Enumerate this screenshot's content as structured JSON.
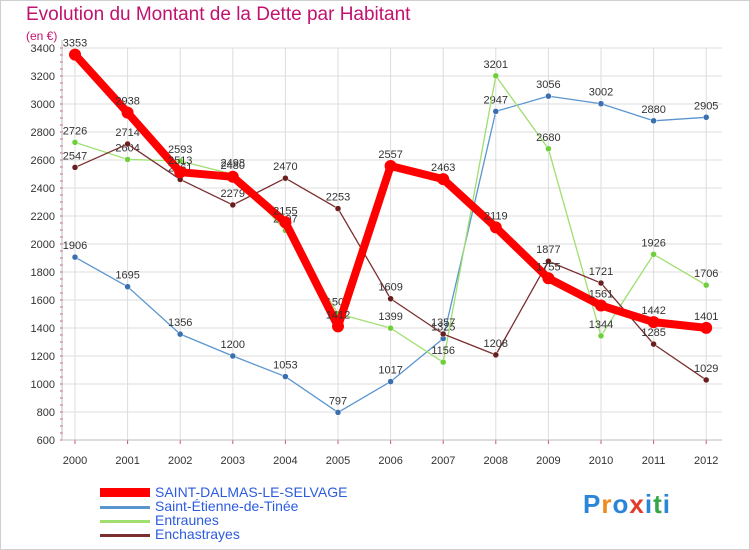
{
  "header": {
    "title": "Evolution du Montant de la Dette par Habitant",
    "unit": "(en €)"
  },
  "logo": {
    "letters": [
      "P",
      "r",
      "o",
      "x",
      "i",
      "t",
      "i"
    ],
    "colors": [
      "#2b86d9",
      "#ef8a1d",
      "#2b86d9",
      "#e23b2b",
      "#2b86d9",
      "#36a64a",
      "#2b86d9"
    ]
  },
  "chart_data": {
    "type": "line",
    "x": [
      "2000",
      "2001",
      "2002",
      "2003",
      "2004",
      "2005",
      "2006",
      "2007",
      "2008",
      "2009",
      "2010",
      "2011",
      "2012"
    ],
    "ylim": [
      600,
      3400
    ],
    "yticks": [
      600,
      800,
      1000,
      1200,
      1400,
      1600,
      1800,
      2000,
      2200,
      2400,
      2600,
      2800,
      3000,
      3200,
      3400
    ],
    "grid": true,
    "legend_position": "bottom-left",
    "series": [
      {
        "name": "Saint-Étienne-de-Tinée",
        "color": "#5b95d0",
        "dot": "#3a6fb0",
        "values": [
          1906,
          1695,
          1356,
          1200,
          1053,
          797,
          1017,
          1325,
          2947,
          3056,
          3002,
          2880,
          2905
        ]
      },
      {
        "name": "Entraunes",
        "color": "#9fde6f",
        "dot": "#6fcf3a",
        "values": [
          2726,
          2604,
          2593,
          2498,
          2097,
          1503,
          1399,
          1156,
          3201,
          2680,
          1344,
          1926,
          1706
        ]
      },
      {
        "name": "Enchastrayes",
        "color": "#7a2e2e",
        "dot": "#6b1e1e",
        "values": [
          2547,
          2714,
          2461,
          2279,
          2470,
          2253,
          1609,
          1357,
          1208,
          1877,
          1721,
          1285,
          1029
        ]
      },
      {
        "name": "SAINT-DALMAS-LE-SELVAGE",
        "color": "#ff0000",
        "dot": "#ff0000",
        "highlight": true,
        "values": [
          3353,
          2938,
          2513,
          2480,
          2155,
          1412,
          2557,
          2463,
          2119,
          1755,
          1561,
          1442,
          1401
        ]
      }
    ],
    "legend_order": [
      "SAINT-DALMAS-LE-SELVAGE",
      "Saint-Étienne-de-Tinée",
      "Entraunes",
      "Enchastrayes"
    ]
  }
}
